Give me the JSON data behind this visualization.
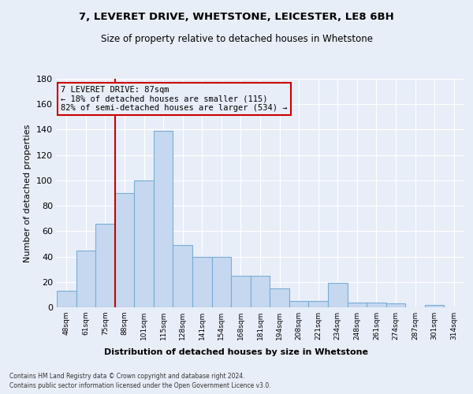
{
  "title1": "7, LEVERET DRIVE, WHETSTONE, LEICESTER, LE8 6BH",
  "title2": "Size of property relative to detached houses in Whetstone",
  "xlabel": "Distribution of detached houses by size in Whetstone",
  "ylabel": "Number of detached properties",
  "categories": [
    "48sqm",
    "61sqm",
    "75sqm",
    "88sqm",
    "101sqm",
    "115sqm",
    "128sqm",
    "141sqm",
    "154sqm",
    "168sqm",
    "181sqm",
    "194sqm",
    "208sqm",
    "221sqm",
    "234sqm",
    "248sqm",
    "261sqm",
    "274sqm",
    "287sqm",
    "301sqm",
    "314sqm"
  ],
  "values": [
    13,
    45,
    66,
    90,
    100,
    139,
    49,
    40,
    40,
    25,
    25,
    15,
    5,
    5,
    19,
    4,
    4,
    3,
    0,
    2,
    0
  ],
  "bar_color": "#c5d8f0",
  "bar_edge_color": "#7aadd4",
  "vline_pos": 2.5,
  "vline_color": "#cc0000",
  "annotation_text": "7 LEVERET DRIVE: 87sqm\n← 18% of detached houses are smaller (115)\n82% of semi-detached houses are larger (534) →",
  "ylim": [
    0,
    180
  ],
  "yticks": [
    0,
    20,
    40,
    60,
    80,
    100,
    120,
    140,
    160,
    180
  ],
  "footer1": "Contains HM Land Registry data © Crown copyright and database right 2024.",
  "footer2": "Contains public sector information licensed under the Open Government Licence v3.0.",
  "bg_color": "#e8eef8",
  "grid_color": "#ffffff"
}
